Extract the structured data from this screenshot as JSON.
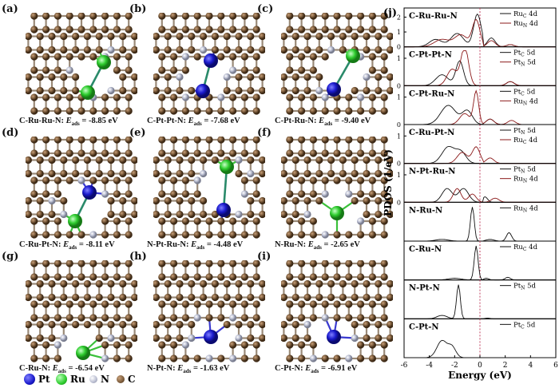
{
  "panels": [
    {
      "label": "(a)",
      "name": "C-Ru-Ru-N",
      "eads": "-8.85 eV"
    },
    {
      "label": "(b)",
      "name": "C-Pt-Pt-N",
      "eads": "-7.68 eV"
    },
    {
      "label": "(c)",
      "name": "C-Pt-Ru-N",
      "eads": "-9.40 eV"
    },
    {
      "label": "(d)",
      "name": "C-Ru-Pt-N",
      "eads": "-8.11 eV"
    },
    {
      "label": "(e)",
      "name": "N-Pt-Ru-N",
      "eads": "-4.48 eV"
    },
    {
      "label": "(f)",
      "name": "N-Ru-N",
      "eads": "-2.65 eV"
    },
    {
      "label": "(g)",
      "name": "C-Ru-N",
      "eads": "-6.54 eV"
    },
    {
      "label": "(h)",
      "name": "N-Pt-N",
      "eads": "-1.63 eV"
    },
    {
      "label": "(i)",
      "name": "C-Pt-N",
      "eads": "-6.91 eV"
    }
  ],
  "eads_symbol": "E",
  "eads_sub": "ads",
  "legend": {
    "pt": "Pt",
    "ru": "Ru",
    "n": "N",
    "c": "C",
    "pt_color": "#1a1acc",
    "ru_color": "#2ecc2e",
    "n_color": "#b8bcd0",
    "c_color": "#7a5a3a"
  },
  "pdos": {
    "label": "(j)",
    "ylabel": "PDOS (1/eV)",
    "xlabel": "Energy (eV)",
    "xticks": [
      "-6",
      "-4",
      "-2",
      "0",
      "2",
      "4",
      "6"
    ],
    "subplots": [
      {
        "title": "C-Ru-Ru-N",
        "yticks": [
          "0",
          "1",
          "2"
        ],
        "legend": [
          [
            "Ru",
            "C",
            "4d"
          ],
          [
            "Ru",
            "N",
            "4d"
          ]
        ]
      },
      {
        "title": "C-Pt-Pt-N",
        "yticks": [
          "0",
          "1"
        ],
        "legend": [
          [
            "Pt",
            "C",
            "5d"
          ],
          [
            "Pt",
            "N",
            "5d"
          ]
        ]
      },
      {
        "title": "C-Pt-Ru-N",
        "yticks": [
          "0",
          "1"
        ],
        "legend": [
          [
            "Pt",
            "C",
            "5d"
          ],
          [
            "Ru",
            "N",
            "4d"
          ]
        ]
      },
      {
        "title": "C-Ru-Pt-N",
        "yticks": [
          "0",
          "1"
        ],
        "legend": [
          [
            "Pt",
            "N",
            "5d"
          ],
          [
            "Ru",
            "C",
            "4d"
          ]
        ]
      },
      {
        "title": "N-Pt-Ru-N",
        "yticks": [
          "0",
          "1"
        ],
        "legend": [
          [
            "Pt",
            "N",
            "5d"
          ],
          [
            "Ru",
            "N",
            "4d"
          ]
        ]
      },
      {
        "title": "N-Ru-N",
        "yticks": [],
        "legend": [
          [
            "Ru",
            "N",
            "4d"
          ]
        ]
      },
      {
        "title": "C-Ru-N",
        "yticks": [],
        "legend": [
          [
            "Ru",
            "C",
            "4d"
          ]
        ]
      },
      {
        "title": "N-Pt-N",
        "yticks": [],
        "legend": [
          [
            "Pt",
            "N",
            "5d"
          ]
        ]
      },
      {
        "title": "C-Pt-N",
        "yticks": [],
        "legend": [
          [
            "Pt",
            "C",
            "5d"
          ]
        ]
      }
    ]
  }
}
